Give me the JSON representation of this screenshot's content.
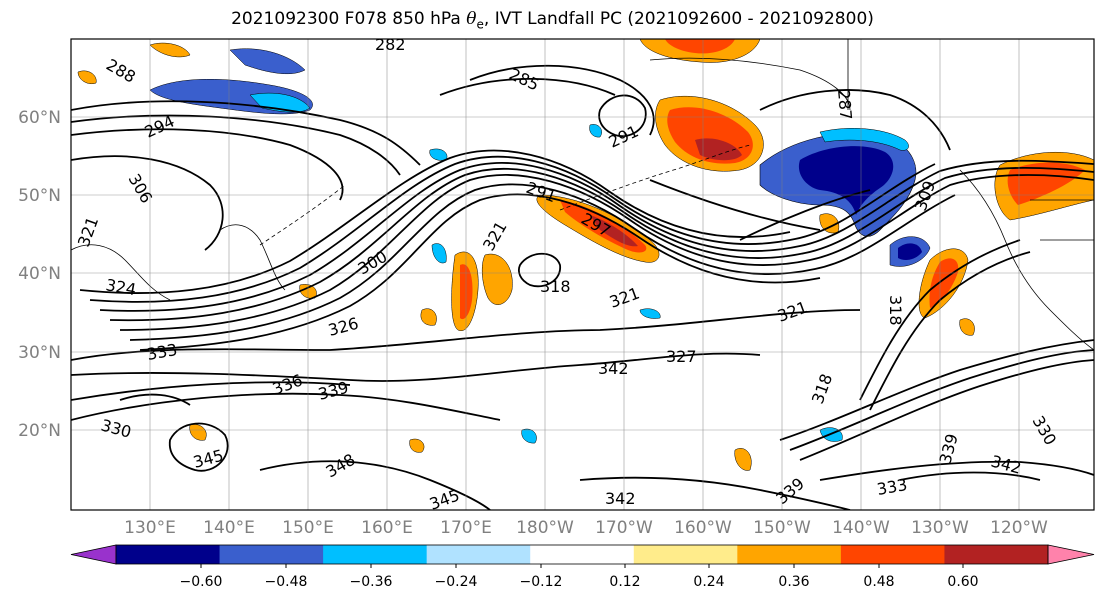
{
  "title": {
    "prefix": "2021092300 F078 850 hPa ",
    "symbol": "θ",
    "subscript": "e",
    "suffix": ", IVT Landfall PC (2021092600 - 2021092800)"
  },
  "map": {
    "lat_labels": [
      "60°N",
      "50°N",
      "40°N",
      "30°N",
      "20°N"
    ],
    "lon_labels": [
      "130°E",
      "140°E",
      "150°E",
      "160°E",
      "170°E",
      "180°W",
      "170°W",
      "160°W",
      "150°W",
      "140°W",
      "130°W",
      "120°W"
    ],
    "contour_labels": [
      "282",
      "288",
      "285",
      "294",
      "291",
      "306",
      "321",
      "300",
      "291",
      "297",
      "321",
      "318",
      "324",
      "321",
      "326",
      "333",
      "336",
      "339",
      "342",
      "327",
      "330",
      "345",
      "348",
      "345",
      "342",
      "339",
      "333",
      "342",
      "339",
      "330",
      "318",
      "309",
      "287",
      "318",
      "321"
    ]
  },
  "colorbar": {
    "colors": [
      "#9932cc",
      "#00008b",
      "#3a5fcd",
      "#00bfff",
      "#b0e2ff",
      "#ffffff",
      "#ffec8b",
      "#ffa500",
      "#ff4500",
      "#b22222",
      "#ff82ab"
    ],
    "tick_labels": [
      "−0.60",
      "−0.48",
      "−0.36",
      "−0.24",
      "−0.12",
      "0.12",
      "0.24",
      "0.36",
      "0.48",
      "0.60"
    ]
  }
}
